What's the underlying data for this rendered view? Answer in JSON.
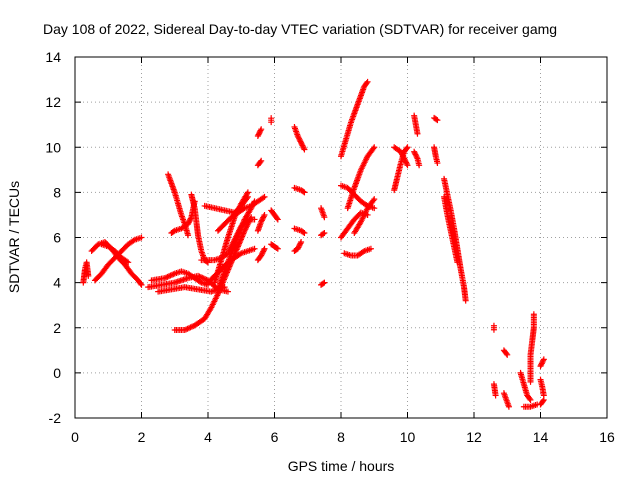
{
  "chart_data": {
    "type": "scatter",
    "title": "Day 108 of 2022, Sidereal Day-to-day VTEC variation (SDTVAR) for receiver gamg",
    "xlabel": "GPS time / hours",
    "ylabel": "SDTVAR / TECUs",
    "xlim": [
      0,
      16
    ],
    "ylim": [
      -2,
      14
    ],
    "xticks": [
      0,
      2,
      4,
      6,
      8,
      10,
      12,
      14,
      16
    ],
    "yticks": [
      -2,
      0,
      2,
      4,
      6,
      8,
      10,
      12,
      14
    ],
    "grid": true,
    "legend": "none",
    "marker": "plus",
    "color": "#ff0000",
    "tracks": [
      [
        [
          0.25,
          4.0
        ],
        [
          0.3,
          4.6
        ],
        [
          0.35,
          4.9
        ],
        [
          0.4,
          4.3
        ]
      ],
      [
        [
          0.5,
          5.4
        ],
        [
          0.7,
          5.7
        ],
        [
          0.9,
          5.8
        ],
        [
          1.1,
          5.5
        ],
        [
          1.3,
          5.1
        ],
        [
          1.5,
          4.8
        ],
        [
          1.7,
          4.4
        ],
        [
          1.9,
          4.1
        ],
        [
          2.0,
          3.9
        ]
      ],
      [
        [
          0.6,
          4.1
        ],
        [
          0.8,
          4.4
        ],
        [
          1.0,
          4.8
        ],
        [
          1.2,
          5.1
        ],
        [
          1.4,
          5.4
        ],
        [
          1.6,
          5.7
        ],
        [
          1.8,
          5.9
        ],
        [
          2.0,
          6.0
        ]
      ],
      [
        [
          0.8,
          5.7
        ],
        [
          1.0,
          5.6
        ],
        [
          1.2,
          5.4
        ],
        [
          1.4,
          5.1
        ],
        [
          1.6,
          4.9
        ]
      ],
      [
        [
          2.2,
          3.8
        ],
        [
          2.6,
          3.9
        ],
        [
          3.0,
          4.0
        ],
        [
          3.4,
          4.2
        ],
        [
          3.7,
          4.3
        ],
        [
          4.0,
          4.1
        ],
        [
          4.3,
          3.7
        ],
        [
          4.6,
          3.6
        ]
      ],
      [
        [
          2.3,
          4.1
        ],
        [
          2.7,
          4.2
        ],
        [
          3.0,
          4.4
        ],
        [
          3.2,
          4.5
        ],
        [
          3.4,
          4.4
        ],
        [
          3.6,
          4.2
        ],
        [
          3.8,
          4.0
        ],
        [
          4.0,
          3.9
        ]
      ],
      [
        [
          2.5,
          3.6
        ],
        [
          2.9,
          3.7
        ],
        [
          3.3,
          3.8
        ],
        [
          3.7,
          3.7
        ],
        [
          4.1,
          3.6
        ],
        [
          4.5,
          3.8
        ]
      ],
      [
        [
          2.8,
          8.8
        ],
        [
          2.9,
          8.4
        ],
        [
          3.0,
          8.0
        ],
        [
          3.1,
          7.5
        ],
        [
          3.2,
          7.0
        ],
        [
          3.3,
          6.6
        ],
        [
          3.4,
          6.1
        ]
      ],
      [
        [
          2.9,
          6.2
        ],
        [
          3.0,
          6.3
        ],
        [
          3.2,
          6.4
        ],
        [
          3.4,
          6.6
        ],
        [
          3.5,
          6.9
        ],
        [
          3.6,
          7.6
        ]
      ],
      [
        [
          3.5,
          7.9
        ],
        [
          3.6,
          7.3
        ],
        [
          3.65,
          6.7
        ],
        [
          3.7,
          6.1
        ],
        [
          3.8,
          5.4
        ],
        [
          3.9,
          5.0
        ],
        [
          4.0,
          4.9
        ]
      ],
      [
        [
          3.0,
          1.9
        ],
        [
          3.3,
          1.9
        ],
        [
          3.6,
          2.1
        ],
        [
          3.9,
          2.4
        ],
        [
          4.1,
          2.9
        ],
        [
          4.3,
          3.5
        ],
        [
          4.5,
          4.2
        ],
        [
          4.7,
          4.9
        ],
        [
          4.9,
          5.6
        ],
        [
          5.1,
          6.3
        ],
        [
          5.3,
          6.9
        ]
      ],
      [
        [
          3.8,
          5.0
        ],
        [
          4.0,
          5.0
        ],
        [
          4.2,
          5.0
        ],
        [
          4.4,
          5.1
        ],
        [
          4.6,
          5.3
        ],
        [
          4.8,
          5.9
        ],
        [
          5.0,
          6.5
        ],
        [
          5.2,
          6.8
        ],
        [
          5.4,
          6.8
        ]
      ],
      [
        [
          4.0,
          4.0
        ],
        [
          4.2,
          4.3
        ],
        [
          4.4,
          4.6
        ],
        [
          4.6,
          4.9
        ],
        [
          4.8,
          5.1
        ],
        [
          5.0,
          5.3
        ],
        [
          5.2,
          5.4
        ],
        [
          5.4,
          5.5
        ]
      ],
      [
        [
          4.3,
          6.3
        ],
        [
          4.5,
          6.6
        ],
        [
          4.7,
          6.9
        ],
        [
          4.9,
          7.1
        ],
        [
          5.1,
          7.3
        ],
        [
          5.3,
          7.4
        ],
        [
          5.5,
          7.6
        ],
        [
          5.7,
          7.8
        ]
      ],
      [
        [
          4.2,
          4.0
        ],
        [
          4.4,
          5.0
        ],
        [
          4.6,
          6.0
        ],
        [
          4.8,
          6.9
        ],
        [
          5.0,
          7.5
        ],
        [
          5.2,
          8.0
        ]
      ],
      [
        [
          4.3,
          3.7
        ],
        [
          4.5,
          4.5
        ],
        [
          4.7,
          5.3
        ],
        [
          4.9,
          6.1
        ],
        [
          5.1,
          6.8
        ],
        [
          5.3,
          7.3
        ],
        [
          5.4,
          7.6
        ]
      ],
      [
        [
          3.9,
          7.4
        ],
        [
          4.2,
          7.3
        ],
        [
          4.5,
          7.2
        ],
        [
          4.8,
          7.1
        ],
        [
          5.0,
          7.4
        ],
        [
          5.2,
          7.8
        ]
      ],
      [
        [
          5.5,
          5.0
        ],
        [
          5.6,
          5.2
        ],
        [
          5.7,
          5.5
        ]
      ],
      [
        [
          5.5,
          6.3
        ],
        [
          5.6,
          6.7
        ],
        [
          5.7,
          7.0
        ]
      ],
      [
        [
          5.5,
          9.2
        ],
        [
          5.6,
          9.4
        ]
      ],
      [
        [
          5.5,
          10.5
        ],
        [
          5.6,
          10.8
        ]
      ],
      [
        [
          5.9,
          11.2
        ]
      ],
      [
        [
          5.9,
          7.2
        ],
        [
          6.0,
          7.0
        ],
        [
          6.1,
          6.8
        ]
      ],
      [
        [
          5.9,
          5.7
        ],
        [
          6.0,
          5.6
        ],
        [
          6.1,
          5.5
        ]
      ],
      [
        [
          6.6,
          10.9
        ],
        [
          6.7,
          10.5
        ],
        [
          6.8,
          10.2
        ],
        [
          6.9,
          9.9
        ]
      ],
      [
        [
          6.6,
          8.2
        ],
        [
          6.8,
          8.1
        ],
        [
          6.9,
          8.0
        ]
      ],
      [
        [
          6.6,
          6.4
        ],
        [
          6.8,
          6.3
        ],
        [
          6.9,
          6.2
        ]
      ],
      [
        [
          6.6,
          5.4
        ],
        [
          6.7,
          5.5
        ],
        [
          6.8,
          5.8
        ]
      ],
      [
        [
          7.4,
          7.3
        ],
        [
          7.45,
          7.1
        ],
        [
          7.5,
          6.9
        ]
      ],
      [
        [
          7.4,
          3.9
        ],
        [
          7.5,
          4.0
        ]
      ],
      [
        [
          7.4,
          6.1
        ],
        [
          7.5,
          6.2
        ]
      ],
      [
        [
          8.0,
          9.6
        ],
        [
          8.1,
          10.1
        ],
        [
          8.2,
          10.6
        ],
        [
          8.3,
          11.1
        ],
        [
          8.4,
          11.5
        ],
        [
          8.5,
          11.9
        ],
        [
          8.6,
          12.3
        ],
        [
          8.7,
          12.7
        ],
        [
          8.8,
          12.9
        ]
      ],
      [
        [
          8.0,
          8.3
        ],
        [
          8.2,
          8.2
        ],
        [
          8.4,
          7.9
        ],
        [
          8.6,
          7.6
        ],
        [
          8.8,
          7.4
        ],
        [
          9.0,
          7.3
        ]
      ],
      [
        [
          8.0,
          6.0
        ],
        [
          8.2,
          6.4
        ],
        [
          8.4,
          6.8
        ],
        [
          8.6,
          7.1
        ],
        [
          8.8,
          7.0
        ]
      ],
      [
        [
          8.1,
          5.3
        ],
        [
          8.3,
          5.2
        ],
        [
          8.5,
          5.2
        ],
        [
          8.7,
          5.4
        ],
        [
          8.9,
          5.5
        ]
      ],
      [
        [
          8.2,
          7.3
        ],
        [
          8.4,
          8.2
        ],
        [
          8.6,
          9.0
        ],
        [
          8.8,
          9.6
        ],
        [
          9.0,
          10.0
        ]
      ],
      [
        [
          8.4,
          6.2
        ],
        [
          8.6,
          6.7
        ],
        [
          8.8,
          7.3
        ],
        [
          9.0,
          7.7
        ]
      ],
      [
        [
          9.6,
          8.1
        ],
        [
          9.7,
          8.7
        ],
        [
          9.8,
          9.3
        ],
        [
          9.9,
          9.8
        ],
        [
          10.0,
          10.0
        ]
      ],
      [
        [
          9.6,
          10.0
        ],
        [
          9.8,
          9.8
        ],
        [
          9.9,
          9.5
        ],
        [
          10.0,
          9.2
        ]
      ],
      [
        [
          10.2,
          11.4
        ],
        [
          10.25,
          11.0
        ],
        [
          10.3,
          10.6
        ]
      ],
      [
        [
          10.2,
          9.8
        ],
        [
          10.3,
          9.5
        ],
        [
          10.35,
          9.2
        ]
      ],
      [
        [
          10.8,
          11.3
        ],
        [
          10.9,
          11.2
        ]
      ],
      [
        [
          10.8,
          10.0
        ],
        [
          10.85,
          9.6
        ],
        [
          10.9,
          9.3
        ]
      ],
      [
        [
          11.1,
          8.6
        ],
        [
          11.2,
          7.9
        ],
        [
          11.3,
          7.2
        ],
        [
          11.4,
          6.4
        ],
        [
          11.5,
          5.5
        ],
        [
          11.6,
          4.6
        ],
        [
          11.7,
          3.8
        ],
        [
          11.75,
          3.2
        ]
      ],
      [
        [
          11.1,
          7.8
        ],
        [
          11.2,
          7.0
        ],
        [
          11.3,
          6.3
        ],
        [
          11.4,
          5.6
        ],
        [
          11.5,
          4.9
        ]
      ],
      [
        [
          12.6,
          2.0
        ]
      ],
      [
        [
          12.6,
          -0.5
        ],
        [
          12.65,
          -1.0
        ]
      ],
      [
        [
          12.9,
          1.0
        ],
        [
          13.0,
          0.8
        ]
      ],
      [
        [
          12.9,
          -0.9
        ],
        [
          13.0,
          -1.3
        ],
        [
          13.05,
          -1.5
        ]
      ],
      [
        [
          13.4,
          0.0
        ],
        [
          13.5,
          -0.5
        ],
        [
          13.6,
          -1.0
        ],
        [
          13.7,
          -1.2
        ]
      ],
      [
        [
          13.5,
          -1.5
        ],
        [
          13.7,
          -1.5
        ],
        [
          13.9,
          -1.4
        ]
      ],
      [
        [
          13.8,
          2.6
        ],
        [
          13.8,
          2.0
        ],
        [
          13.75,
          1.4
        ],
        [
          13.7,
          0.8
        ],
        [
          13.7,
          0.2
        ],
        [
          13.7,
          -0.4
        ]
      ],
      [
        [
          14.0,
          -0.3
        ],
        [
          14.05,
          -0.6
        ],
        [
          14.1,
          -1.0
        ]
      ],
      [
        [
          14.0,
          0.3
        ],
        [
          14.1,
          0.6
        ]
      ],
      [
        [
          14.0,
          -1.4
        ],
        [
          14.1,
          -1.2
        ]
      ]
    ]
  }
}
